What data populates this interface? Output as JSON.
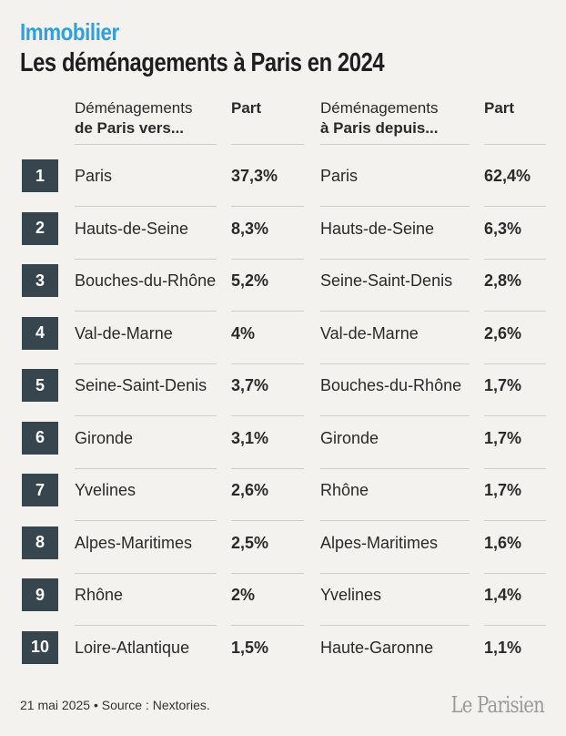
{
  "kicker": "Immobilier",
  "title": "Les déménagements à Paris en 2024",
  "headers": {
    "from_line1": "Déménagements",
    "from_line2": "de Paris vers...",
    "from_share": "Part",
    "to_line1": "Déménagements",
    "to_line2": "à Paris depuis...",
    "to_share": "Part"
  },
  "rows": [
    {
      "rank": "1",
      "from": "Paris",
      "from_share": "37,3%",
      "to": "Paris",
      "to_share": "62,4%"
    },
    {
      "rank": "2",
      "from": "Hauts-de-Seine",
      "from_share": "8,3%",
      "to": "Hauts-de-Seine",
      "to_share": "6,3%"
    },
    {
      "rank": "3",
      "from": "Bouches-du-Rhône",
      "from_share": "5,2%",
      "to": "Seine-Saint-Denis",
      "to_share": "2,8%"
    },
    {
      "rank": "4",
      "from": "Val-de-Marne",
      "from_share": "4%",
      "to": "Val-de-Marne",
      "to_share": "2,6%"
    },
    {
      "rank": "5",
      "from": "Seine-Saint-Denis",
      "from_share": "3,7%",
      "to": "Bouches-du-Rhône",
      "to_share": "1,7%"
    },
    {
      "rank": "6",
      "from": "Gironde",
      "from_share": "3,1%",
      "to": "Gironde",
      "to_share": "1,7%"
    },
    {
      "rank": "7",
      "from": "Yvelines",
      "from_share": "2,6%",
      "to": "Rhône",
      "to_share": "1,7%"
    },
    {
      "rank": "8",
      "from": "Alpes-Maritimes",
      "from_share": "2,5%",
      "to": "Alpes-Maritimes",
      "to_share": "1,6%"
    },
    {
      "rank": "9",
      "from": "Rhône",
      "from_share": "2%",
      "to": "Yvelines",
      "to_share": "1,4%"
    },
    {
      "rank": "10",
      "from": "Loire-Atlantique",
      "from_share": "1,5%",
      "to": "Haute-Garonne",
      "to_share": "1,1%"
    }
  ],
  "footer": "21 mai 2025 • Source : Nextories.",
  "logo": "Le Parisien",
  "colors": {
    "accent": "#2e9fe0",
    "badge": "#37454f",
    "background": "#f3f2ee"
  }
}
